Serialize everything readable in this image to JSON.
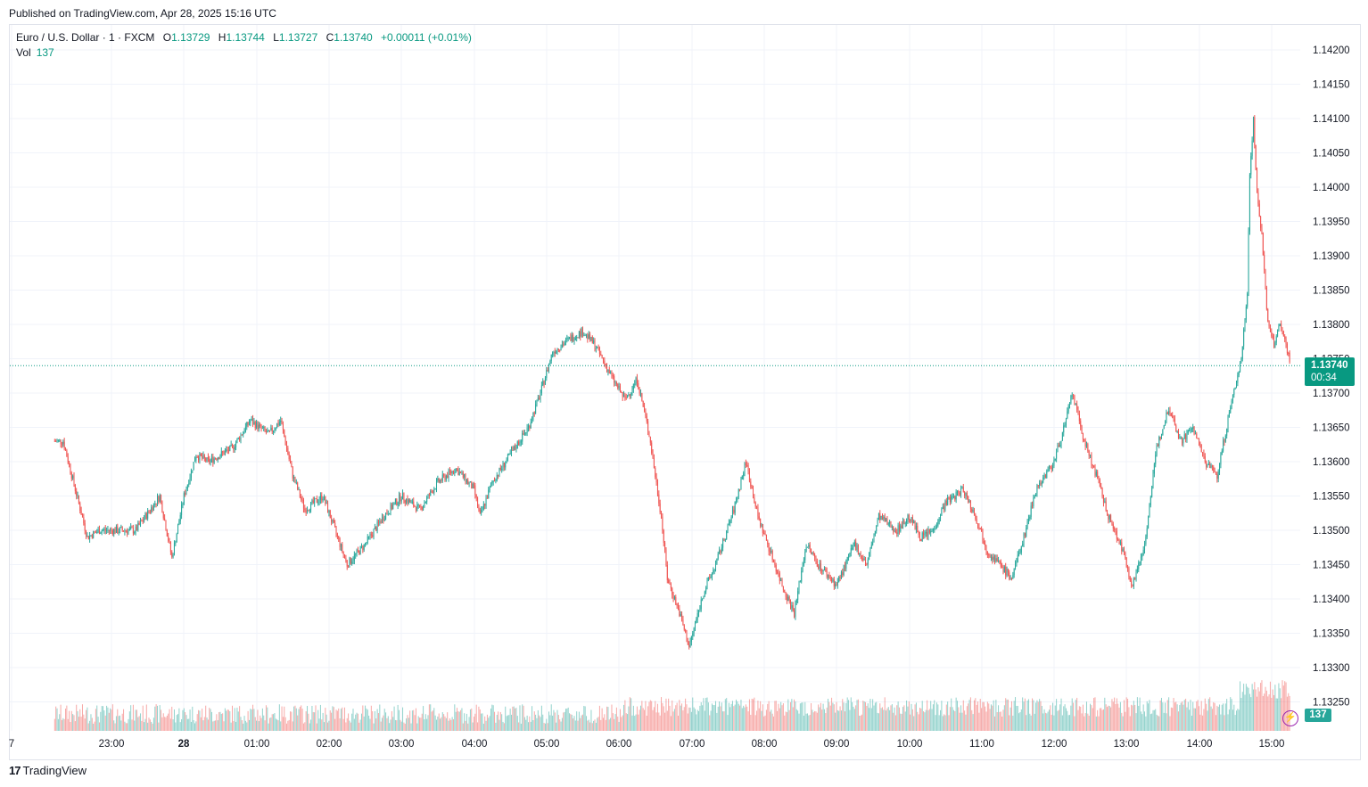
{
  "header": {
    "published": "Published on TradingView.com, Apr 28, 2025 15:16 UTC"
  },
  "legend": {
    "symbol": "Euro / U.S. Dollar · 1 · FXCM",
    "o_label": "O",
    "o": "1.13729",
    "h_label": "H",
    "h": "1.13744",
    "l_label": "L",
    "l": "1.13727",
    "c_label": "C",
    "c": "1.13740",
    "change": "+0.00011 (+0.01%)",
    "vol_label": "Vol",
    "vol": "137"
  },
  "last_price": {
    "price": "1.13740",
    "countdown": "00:34"
  },
  "last_volume": "137",
  "footer": {
    "brand": "TradingView"
  },
  "colors": {
    "up": "#26a69a",
    "down": "#ef5350",
    "accent": "#089981",
    "grid": "#f0f3fa"
  },
  "icons": {
    "alert": "lightning-bolt-icon",
    "logo": "tradingview-logo-icon"
  },
  "chart_data": {
    "type": "candlestick",
    "symbol": "EURUSD",
    "timeframe": "1 minute",
    "y_axis": {
      "ticks": [
        "1.14200",
        "1.14150",
        "1.14100",
        "1.14050",
        "1.14000",
        "1.13950",
        "1.13900",
        "1.13850",
        "1.13800",
        "1.13750",
        "1.13700",
        "1.13650",
        "1.13600",
        "1.13550",
        "1.13500",
        "1.13450",
        "1.13400",
        "1.13350",
        "1.13300",
        "1.13250"
      ],
      "range": [
        1.1322,
        1.1423
      ]
    },
    "x_axis": {
      "ticks": [
        "7",
        "23:00",
        "28",
        "01:00",
        "02:00",
        "03:00",
        "04:00",
        "05:00",
        "06:00",
        "07:00",
        "08:00",
        "09:00",
        "10:00",
        "11:00",
        "12:00",
        "13:00",
        "14:00",
        "15:00"
      ]
    },
    "last_price": 1.1374,
    "price_path": [
      {
        "t": "22:13",
        "p": 1.1363
      },
      {
        "t": "22:20",
        "p": 1.1363
      },
      {
        "t": "22:30",
        "p": 1.1356
      },
      {
        "t": "22:40",
        "p": 1.1349
      },
      {
        "t": "22:50",
        "p": 1.135
      },
      {
        "t": "23:00",
        "p": 1.135
      },
      {
        "t": "23:10",
        "p": 1.135
      },
      {
        "t": "23:20",
        "p": 1.135
      },
      {
        "t": "23:40",
        "p": 1.1355
      },
      {
        "t": "23:50",
        "p": 1.1346
      },
      {
        "t": "00:00",
        "p": 1.1355
      },
      {
        "t": "00:10",
        "p": 1.1361
      },
      {
        "t": "00:20",
        "p": 1.136
      },
      {
        "t": "00:40",
        "p": 1.1362
      },
      {
        "t": "00:55",
        "p": 1.1366
      },
      {
        "t": "01:10",
        "p": 1.1364
      },
      {
        "t": "01:20",
        "p": 1.1366
      },
      {
        "t": "01:30",
        "p": 1.1358
      },
      {
        "t": "01:40",
        "p": 1.1353
      },
      {
        "t": "01:55",
        "p": 1.1355
      },
      {
        "t": "02:05",
        "p": 1.135
      },
      {
        "t": "02:15",
        "p": 1.1345
      },
      {
        "t": "02:30",
        "p": 1.1348
      },
      {
        "t": "02:45",
        "p": 1.1352
      },
      {
        "t": "03:00",
        "p": 1.1355
      },
      {
        "t": "03:15",
        "p": 1.1353
      },
      {
        "t": "03:30",
        "p": 1.1357
      },
      {
        "t": "03:45",
        "p": 1.1359
      },
      {
        "t": "04:00",
        "p": 1.1356
      },
      {
        "t": "04:05",
        "p": 1.1352
      },
      {
        "t": "04:15",
        "p": 1.1357
      },
      {
        "t": "04:30",
        "p": 1.1361
      },
      {
        "t": "04:45",
        "p": 1.1365
      },
      {
        "t": "04:55",
        "p": 1.137
      },
      {
        "t": "05:05",
        "p": 1.1376
      },
      {
        "t": "05:20",
        "p": 1.1378
      },
      {
        "t": "05:30",
        "p": 1.1379
      },
      {
        "t": "05:40",
        "p": 1.1377
      },
      {
        "t": "05:55",
        "p": 1.1372
      },
      {
        "t": "06:05",
        "p": 1.1369
      },
      {
        "t": "06:15",
        "p": 1.1372
      },
      {
        "t": "06:25",
        "p": 1.1364
      },
      {
        "t": "06:35",
        "p": 1.1352
      },
      {
        "t": "06:40",
        "p": 1.1343
      },
      {
        "t": "06:50",
        "p": 1.1338
      },
      {
        "t": "06:58",
        "p": 1.1333
      },
      {
        "t": "07:10",
        "p": 1.1341
      },
      {
        "t": "07:20",
        "p": 1.1345
      },
      {
        "t": "07:35",
        "p": 1.1353
      },
      {
        "t": "07:45",
        "p": 1.136
      },
      {
        "t": "07:55",
        "p": 1.1352
      },
      {
        "t": "08:05",
        "p": 1.1347
      },
      {
        "t": "08:15",
        "p": 1.1342
      },
      {
        "t": "08:25",
        "p": 1.1338
      },
      {
        "t": "08:35",
        "p": 1.1348
      },
      {
        "t": "08:45",
        "p": 1.1345
      },
      {
        "t": "09:00",
        "p": 1.1342
      },
      {
        "t": "09:15",
        "p": 1.1348
      },
      {
        "t": "09:25",
        "p": 1.1345
      },
      {
        "t": "09:35",
        "p": 1.1352
      },
      {
        "t": "09:50",
        "p": 1.135
      },
      {
        "t": "10:00",
        "p": 1.1352
      },
      {
        "t": "10:10",
        "p": 1.1349
      },
      {
        "t": "10:20",
        "p": 1.135
      },
      {
        "t": "10:30",
        "p": 1.1354
      },
      {
        "t": "10:45",
        "p": 1.1356
      },
      {
        "t": "10:55",
        "p": 1.1352
      },
      {
        "t": "11:05",
        "p": 1.1347
      },
      {
        "t": "11:15",
        "p": 1.1345
      },
      {
        "t": "11:25",
        "p": 1.1343
      },
      {
        "t": "11:35",
        "p": 1.1349
      },
      {
        "t": "11:45",
        "p": 1.1356
      },
      {
        "t": "12:00",
        "p": 1.136
      },
      {
        "t": "12:10",
        "p": 1.1366
      },
      {
        "t": "12:15",
        "p": 1.137
      },
      {
        "t": "12:25",
        "p": 1.1363
      },
      {
        "t": "12:35",
        "p": 1.1358
      },
      {
        "t": "12:45",
        "p": 1.1352
      },
      {
        "t": "12:55",
        "p": 1.1348
      },
      {
        "t": "13:05",
        "p": 1.1342
      },
      {
        "t": "13:15",
        "p": 1.1348
      },
      {
        "t": "13:25",
        "p": 1.1362
      },
      {
        "t": "13:35",
        "p": 1.1368
      },
      {
        "t": "13:45",
        "p": 1.1363
      },
      {
        "t": "13:55",
        "p": 1.1365
      },
      {
        "t": "14:05",
        "p": 1.136
      },
      {
        "t": "14:15",
        "p": 1.1358
      },
      {
        "t": "14:25",
        "p": 1.1367
      },
      {
        "t": "14:35",
        "p": 1.1375
      },
      {
        "t": "14:40",
        "p": 1.1385
      },
      {
        "t": "14:42",
        "p": 1.1402
      },
      {
        "t": "14:45",
        "p": 1.141
      },
      {
        "t": "14:48",
        "p": 1.1399
      },
      {
        "t": "14:52",
        "p": 1.1393
      },
      {
        "t": "14:57",
        "p": 1.138
      },
      {
        "t": "15:02",
        "p": 1.1377
      },
      {
        "t": "15:07",
        "p": 1.138
      },
      {
        "t": "15:12",
        "p": 1.1377
      },
      {
        "t": "15:16",
        "p": 1.1374
      }
    ]
  }
}
